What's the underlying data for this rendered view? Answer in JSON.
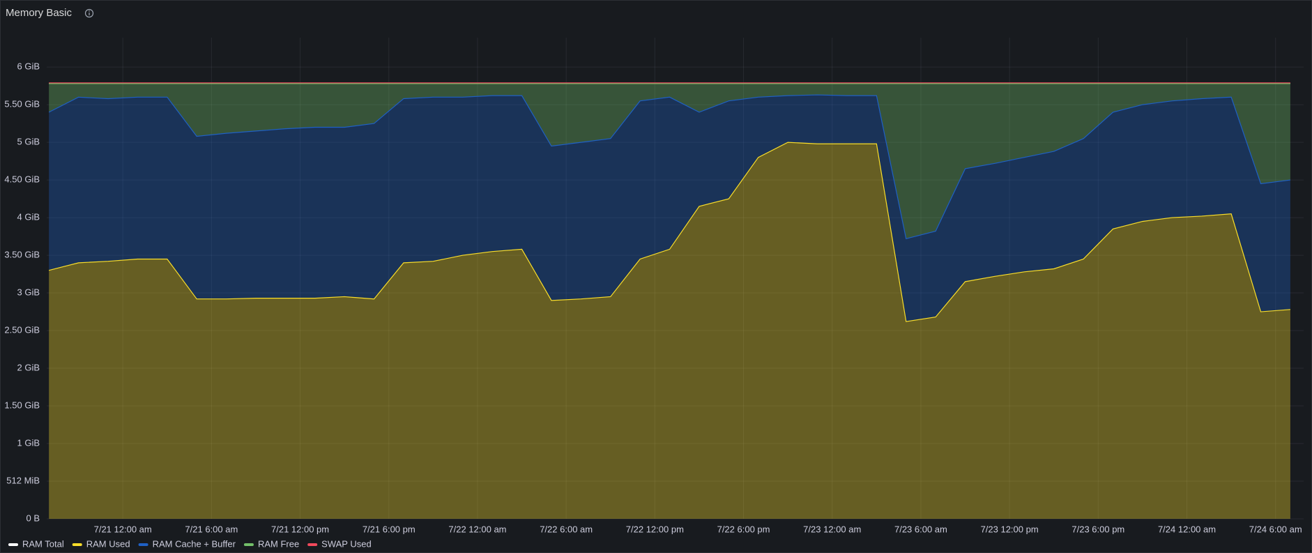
{
  "chart_data": {
    "type": "area",
    "title": "Memory Basic",
    "x": [
      "7/20 7:00 pm",
      "7/20 9:00 pm",
      "7/20 11:00 pm",
      "7/21 1:00 am",
      "7/21 3:00 am",
      "7/21 5:00 am",
      "7/21 7:00 am",
      "7/21 9:00 am",
      "7/21 11:00 am",
      "7/21 1:00 pm",
      "7/21 3:00 pm",
      "7/21 5:00 pm",
      "7/21 7:00 pm",
      "7/21 9:00 pm",
      "7/21 11:00 pm",
      "7/22 1:00 am",
      "7/22 3:00 am",
      "7/22 5:00 am",
      "7/22 7:00 am",
      "7/22 9:00 am",
      "7/22 11:00 am",
      "7/22 1:00 pm",
      "7/22 3:00 pm",
      "7/22 5:00 pm",
      "7/22 7:00 pm",
      "7/22 9:00 pm",
      "7/22 11:00 pm",
      "7/23 1:00 am",
      "7/23 3:00 am",
      "7/23 5:00 am",
      "7/23 7:00 am",
      "7/23 9:00 am",
      "7/23 11:00 am",
      "7/23 1:00 pm",
      "7/23 3:00 pm",
      "7/23 5:00 pm",
      "7/23 7:00 pm",
      "7/23 9:00 pm",
      "7/23 11:00 pm",
      "7/24 1:00 am",
      "7/24 3:00 am",
      "7/24 5:00 am",
      "7/24 7:00 am"
    ],
    "xlim": [
      "7/20 6:51 pm",
      "7/24 7:54 am"
    ],
    "xticks": [
      "7/21 12:00 am",
      "7/21 6:00 am",
      "7/21 12:00 pm",
      "7/21 6:00 pm",
      "7/22 12:00 am",
      "7/22 6:00 am",
      "7/22 12:00 pm",
      "7/22 6:00 pm",
      "7/23 12:00 am",
      "7/23 6:00 am",
      "7/23 12:00 pm",
      "7/23 6:00 pm",
      "7/24 12:00 am",
      "7/24 6:00 am"
    ],
    "ylim": [
      0,
      6.39
    ],
    "yticks": [
      {
        "value": 0,
        "label": "0 B"
      },
      {
        "value": 0.5,
        "label": "512 MiB"
      },
      {
        "value": 1,
        "label": "1 GiB"
      },
      {
        "value": 1.5,
        "label": "1.50 GiB"
      },
      {
        "value": 2,
        "label": "2 GiB"
      },
      {
        "value": 2.5,
        "label": "2.50 GiB"
      },
      {
        "value": 3,
        "label": "3 GiB"
      },
      {
        "value": 3.5,
        "label": "3.50 GiB"
      },
      {
        "value": 4,
        "label": "4 GiB"
      },
      {
        "value": 4.5,
        "label": "4.50 GiB"
      },
      {
        "value": 5,
        "label": "5 GiB"
      },
      {
        "value": 5.5,
        "label": "5.50 GiB"
      },
      {
        "value": 6,
        "label": "6 GiB"
      }
    ],
    "grid": true,
    "fill_opacity": 0.35,
    "series": [
      {
        "name": "RAM Total",
        "color": "#ffffff",
        "stacked": false,
        "values": [
          5.78,
          5.78,
          5.78,
          5.78,
          5.78,
          5.78,
          5.78,
          5.78,
          5.78,
          5.78,
          5.78,
          5.78,
          5.78,
          5.78,
          5.78,
          5.78,
          5.78,
          5.78,
          5.78,
          5.78,
          5.78,
          5.78,
          5.78,
          5.78,
          5.78,
          5.78,
          5.78,
          5.78,
          5.78,
          5.78,
          5.78,
          5.78,
          5.78,
          5.78,
          5.78,
          5.78,
          5.78,
          5.78,
          5.78,
          5.78,
          5.78,
          5.78,
          5.78
        ]
      },
      {
        "name": "RAM Used",
        "color": "#fade2a",
        "stacked": true,
        "values": [
          3.3,
          3.4,
          3.42,
          3.45,
          3.45,
          2.92,
          2.92,
          2.93,
          2.93,
          2.93,
          2.95,
          2.92,
          3.4,
          3.42,
          3.5,
          3.55,
          3.58,
          2.9,
          2.92,
          2.95,
          3.45,
          3.58,
          4.15,
          4.25,
          4.8,
          5.0,
          4.98,
          4.98,
          4.98,
          2.62,
          2.68,
          3.15,
          3.22,
          3.28,
          3.32,
          3.45,
          3.85,
          3.95,
          4.0,
          4.02,
          4.05,
          2.75,
          2.78
        ]
      },
      {
        "name": "RAM Cache + Buffer",
        "color": "#1f60c4",
        "stacked": true,
        "values": [
          2.1,
          2.2,
          2.16,
          2.15,
          2.15,
          2.16,
          2.2,
          2.22,
          2.25,
          2.27,
          2.25,
          2.33,
          2.18,
          2.18,
          2.1,
          2.07,
          2.04,
          2.05,
          2.08,
          2.1,
          2.1,
          2.02,
          1.25,
          1.3,
          0.8,
          0.62,
          0.65,
          0.64,
          0.64,
          1.1,
          1.14,
          1.5,
          1.5,
          1.52,
          1.56,
          1.6,
          1.55,
          1.55,
          1.55,
          1.56,
          1.55,
          1.7,
          1.72
        ]
      },
      {
        "name": "RAM Free",
        "color": "#73bf69",
        "stacked": true,
        "values": [
          0.38,
          0.18,
          0.2,
          0.18,
          0.18,
          0.7,
          0.66,
          0.63,
          0.6,
          0.58,
          0.58,
          0.53,
          0.2,
          0.18,
          0.18,
          0.16,
          0.16,
          0.83,
          0.78,
          0.73,
          0.23,
          0.18,
          0.38,
          0.23,
          0.18,
          0.16,
          0.15,
          0.16,
          0.16,
          2.06,
          1.96,
          1.13,
          1.06,
          0.98,
          0.9,
          0.73,
          0.38,
          0.28,
          0.23,
          0.2,
          0.18,
          1.33,
          1.28
        ]
      },
      {
        "name": "SWAP Used",
        "color": "#f2495c",
        "stacked": true,
        "values": [
          0.01,
          0.01,
          0.01,
          0.01,
          0.01,
          0.01,
          0.01,
          0.01,
          0.01,
          0.01,
          0.01,
          0.01,
          0.01,
          0.01,
          0.01,
          0.01,
          0.01,
          0.01,
          0.01,
          0.01,
          0.01,
          0.01,
          0.01,
          0.01,
          0.01,
          0.01,
          0.01,
          0.01,
          0.01,
          0.01,
          0.01,
          0.01,
          0.01,
          0.01,
          0.01,
          0.01,
          0.01,
          0.01,
          0.01,
          0.01,
          0.01,
          0.01,
          0.01
        ]
      }
    ]
  }
}
